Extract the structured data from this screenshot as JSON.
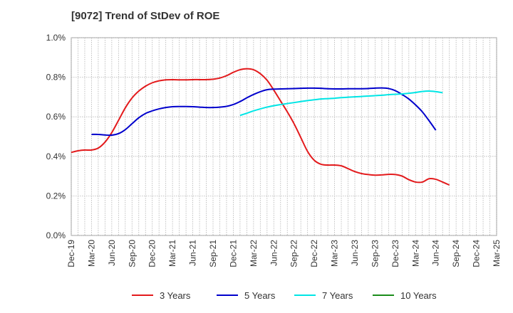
{
  "chart_data": {
    "type": "line",
    "title": "[9072]  Trend of StDev of ROE",
    "xlabel": "",
    "ylabel": "",
    "x_ticks": [
      "Dec-19",
      "Mar-20",
      "Jun-20",
      "Sep-20",
      "Dec-20",
      "Mar-21",
      "Jun-21",
      "Sep-21",
      "Dec-21",
      "Mar-22",
      "Jun-22",
      "Sep-22",
      "Dec-22",
      "Mar-23",
      "Jun-23",
      "Sep-23",
      "Dec-23",
      "Mar-24",
      "Jun-24",
      "Sep-24",
      "Dec-24",
      "Mar-25"
    ],
    "y_ticks": [
      "0.0%",
      "0.2%",
      "0.4%",
      "0.6%",
      "0.8%",
      "1.0%"
    ],
    "ylim": [
      0,
      1.0
    ],
    "grid": true,
    "legend_position": "bottom",
    "series": [
      {
        "name": "3 Years",
        "color": "#e31a1c",
        "values": [
          [
            0,
            0.42
          ],
          [
            1,
            0.428
          ],
          [
            2,
            0.432
          ],
          [
            3,
            0.432
          ],
          [
            4,
            0.442
          ],
          [
            5,
            0.472
          ],
          [
            6,
            0.52
          ],
          [
            7,
            0.582
          ],
          [
            8,
            0.645
          ],
          [
            9,
            0.695
          ],
          [
            10,
            0.73
          ],
          [
            11,
            0.755
          ],
          [
            12,
            0.772
          ],
          [
            13,
            0.782
          ],
          [
            14,
            0.787
          ],
          [
            15,
            0.788
          ],
          [
            16,
            0.787
          ],
          [
            17,
            0.787
          ],
          [
            18,
            0.788
          ],
          [
            19,
            0.788
          ],
          [
            20,
            0.788
          ],
          [
            21,
            0.79
          ],
          [
            22,
            0.796
          ],
          [
            23,
            0.808
          ],
          [
            24,
            0.825
          ],
          [
            25,
            0.838
          ],
          [
            26,
            0.843
          ],
          [
            27,
            0.838
          ],
          [
            28,
            0.818
          ],
          [
            29,
            0.785
          ],
          [
            30,
            0.735
          ],
          [
            31,
            0.68
          ],
          [
            32,
            0.625
          ],
          [
            33,
            0.565
          ],
          [
            34,
            0.495
          ],
          [
            35,
            0.425
          ],
          [
            36,
            0.38
          ],
          [
            37,
            0.36
          ],
          [
            38,
            0.356
          ],
          [
            39,
            0.356
          ],
          [
            40,
            0.352
          ],
          [
            41,
            0.338
          ],
          [
            42,
            0.323
          ],
          [
            43,
            0.313
          ],
          [
            44,
            0.308
          ],
          [
            45,
            0.305
          ],
          [
            46,
            0.306
          ],
          [
            47,
            0.309
          ],
          [
            48,
            0.308
          ],
          [
            49,
            0.3
          ],
          [
            50,
            0.282
          ],
          [
            51,
            0.27
          ],
          [
            52,
            0.27
          ],
          [
            53,
            0.287
          ],
          [
            54,
            0.284
          ],
          [
            55,
            0.27
          ],
          [
            56,
            0.255
          ]
        ]
      },
      {
        "name": "5 Years",
        "color": "#0000cc",
        "values": [
          [
            3,
            0.511
          ],
          [
            4,
            0.511
          ],
          [
            5,
            0.508
          ],
          [
            6,
            0.507
          ],
          [
            7,
            0.515
          ],
          [
            8,
            0.535
          ],
          [
            9,
            0.565
          ],
          [
            10,
            0.595
          ],
          [
            11,
            0.617
          ],
          [
            12,
            0.63
          ],
          [
            13,
            0.64
          ],
          [
            14,
            0.647
          ],
          [
            15,
            0.651
          ],
          [
            16,
            0.652
          ],
          [
            17,
            0.652
          ],
          [
            18,
            0.651
          ],
          [
            19,
            0.649
          ],
          [
            20,
            0.647
          ],
          [
            21,
            0.647
          ],
          [
            22,
            0.649
          ],
          [
            23,
            0.653
          ],
          [
            24,
            0.662
          ],
          [
            25,
            0.677
          ],
          [
            26,
            0.696
          ],
          [
            27,
            0.713
          ],
          [
            28,
            0.727
          ],
          [
            29,
            0.737
          ],
          [
            30,
            0.74
          ],
          [
            31,
            0.741
          ],
          [
            32,
            0.742
          ],
          [
            33,
            0.743
          ],
          [
            34,
            0.744
          ],
          [
            35,
            0.745
          ],
          [
            36,
            0.745
          ],
          [
            37,
            0.744
          ],
          [
            38,
            0.742
          ],
          [
            39,
            0.741
          ],
          [
            40,
            0.741
          ],
          [
            41,
            0.742
          ],
          [
            42,
            0.742
          ],
          [
            43,
            0.742
          ],
          [
            44,
            0.743
          ],
          [
            45,
            0.745
          ],
          [
            46,
            0.746
          ],
          [
            47,
            0.743
          ],
          [
            48,
            0.732
          ],
          [
            49,
            0.713
          ],
          [
            50,
            0.69
          ],
          [
            51,
            0.66
          ],
          [
            52,
            0.625
          ],
          [
            53,
            0.58
          ],
          [
            54,
            0.532
          ]
        ]
      },
      {
        "name": "7 Years",
        "color": "#00e5e5",
        "values": [
          [
            25,
            0.607
          ],
          [
            26,
            0.618
          ],
          [
            27,
            0.63
          ],
          [
            28,
            0.64
          ],
          [
            29,
            0.649
          ],
          [
            30,
            0.656
          ],
          [
            31,
            0.662
          ],
          [
            32,
            0.667
          ],
          [
            33,
            0.672
          ],
          [
            34,
            0.677
          ],
          [
            35,
            0.682
          ],
          [
            36,
            0.686
          ],
          [
            37,
            0.69
          ],
          [
            38,
            0.692
          ],
          [
            39,
            0.694
          ],
          [
            40,
            0.697
          ],
          [
            41,
            0.699
          ],
          [
            42,
            0.701
          ],
          [
            43,
            0.703
          ],
          [
            44,
            0.705
          ],
          [
            45,
            0.707
          ],
          [
            46,
            0.709
          ],
          [
            47,
            0.712
          ],
          [
            48,
            0.714
          ],
          [
            49,
            0.716
          ],
          [
            50,
            0.719
          ],
          [
            51,
            0.723
          ],
          [
            52,
            0.728
          ],
          [
            53,
            0.73
          ],
          [
            54,
            0.727
          ],
          [
            55,
            0.722
          ]
        ]
      },
      {
        "name": "10 Years",
        "color": "#1a8c1a",
        "values": []
      }
    ]
  }
}
